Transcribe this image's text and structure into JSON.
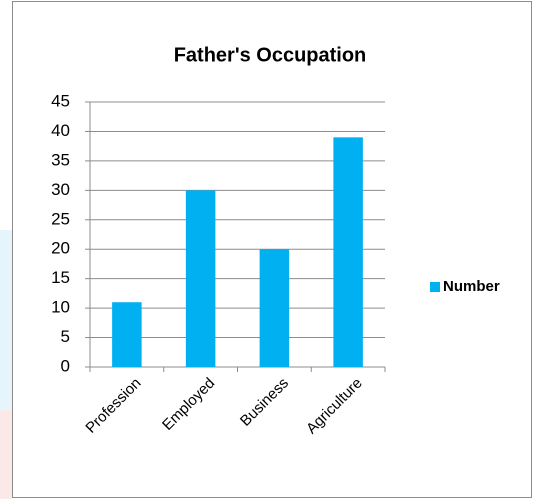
{
  "chart_data": {
    "type": "bar",
    "title": "Father's Occupation",
    "categories": [
      "Profession",
      "Employed",
      "Business",
      "Agriculture"
    ],
    "series": [
      {
        "name": "Number",
        "color": "#00b0f0",
        "values": [
          11,
          30,
          20,
          39
        ]
      }
    ],
    "ylim": [
      0,
      45
    ],
    "yticks": [
      0,
      5,
      10,
      15,
      20,
      25,
      30,
      35,
      40,
      45
    ],
    "grid": true,
    "legend": "right"
  }
}
